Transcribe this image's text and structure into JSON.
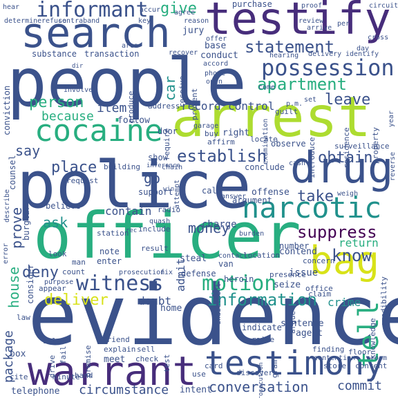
{
  "words": {
    "evidence": "evidence",
    "people": "people",
    "police": "police",
    "officer": "officer",
    "arrest": "arrest",
    "testify": "testify",
    "search": "search",
    "warrant": "warrant",
    "drug": "drug",
    "testimony": "testimony",
    "cocaine": "cocaine",
    "narcotic": "narcotic",
    "bag": "bag",
    "informant": "informant",
    "possession": "possession",
    "witness": "witness",
    "motion": "motion",
    "information": "information",
    "establish": "establish",
    "apartment": "apartment",
    "statement": "statement",
    "suppress": "suppress",
    "conversation": "conversation",
    "circumstance": "circumstance",
    "deliver": "deliver",
    "tell": "tell",
    "know": "know",
    "house": "house",
    "package": "package",
    "deny": "deny",
    "person": "person",
    "place": "place",
    "prove": "prove",
    "give": "give",
    "leave": "leave",
    "obtain": "obtain",
    "because": "because",
    "item": "item",
    "car": "car",
    "say": "say",
    "money": "money",
    "take": "take",
    "go": "go",
    "ask": "ask",
    "record": "record",
    "control": "control",
    "return": "return",
    "charge": "charge",
    "contain": "contain",
    "admit": "admit",
    "crime": "crime",
    "commit": "commit",
    "doubt": "doubt",
    "issue": "issue",
    "substance": "substance",
    "transaction": "transaction",
    "purchase": "purchase",
    "follow": "follow",
    "right": "right",
    "place_small": "offense",
    "argument": "argument",
    "home": "home",
    "steal": "steal",
    "defense": "defense",
    "heroin": "heroin",
    "telephone": "telephone",
    "intent": "intent",
    "conduct": "conduct",
    "base": "base",
    "jury": "jury",
    "meet": "meet",
    "note": "note",
    "enter": "enter",
    "sentence": "sentence",
    "agent": "agent",
    "seize": "seize",
    "contend": "contend",
    "surveillance": "surveillance",
    "establish_small": "observe",
    "box": "box",
    "indicate": "indicate",
    "number": "number",
    "call": "call",
    "support": "support",
    "conviction": "conviction",
    "burglary": "burglary",
    "believe": "believe",
    "consider": "consider",
    "counsel": "counsel",
    "door": "door",
    "show": "show",
    "conclude": "conclude",
    "request": "request",
    "building": "building",
    "radio": "radio",
    "van": "van",
    "result": "result",
    "include": "include",
    "station": "station",
    "presence": "presence",
    "location": "location",
    "concern": "concern",
    "office": "office",
    "claim": "claim",
    "finding": "finding",
    "floor": "floor",
    "store": "store",
    "content": "content",
    "card": "card",
    "sell": "sell",
    "explain": "explain",
    "friend": "friend",
    "check": "check",
    "raise": "raise",
    "discover": "discover",
    "fail": "fail",
    "look": "look",
    "man": "man",
    "count": "count",
    "appear": "appear",
    "purpose": "purpose",
    "law": "law",
    "sale": "sale",
    "minute": "minute",
    "cite": "cite",
    "hand": "hand",
    "drive": "drive",
    "use": "use",
    "premise": "premise",
    "test": "test",
    "gram": "gram",
    "argue": "argue",
    "knowledge": "knowledge",
    "credibility": "credibility",
    "residence": "residence",
    "property": "property",
    "examination": "examination",
    "introduce": "introduce",
    "guilt": "guilt",
    "locate": "locate",
    "affirm": "affirm",
    "buy": "buy",
    "hearing": "hearing",
    "delivery": "delivery",
    "identify": "identify",
    "receive": "receive",
    "present": "present",
    "require": "require",
    "address": "address",
    "produce": "produce",
    "involve": "involve",
    "area": "area",
    "contraband": "contraband",
    "determine": "determine",
    "refuse": "refuse",
    "key": "key",
    "agree": "agree",
    "reason": "reason",
    "hear": "hear",
    "accur": "accur",
    "proof": "proof",
    "circuit": "circuit",
    "review": "review",
    "arrive": "arrive",
    "per": "per",
    "cross": "cross",
    "day": "day",
    "come": "come",
    "open": "open",
    "phone": "phone",
    "accord": "accord",
    "offer": "offer",
    "recover": "recover",
    "set": "set",
    "pm": "p.m.",
    "garage": "garage",
    "chain": "chain",
    "cash": "cash",
    "weigh": "weigh",
    "reverse": "reverse",
    "year": "year",
    "describe": "describe",
    "quash": "quash",
    "attempt": "attempt",
    "answer": "answer",
    "inference": "inference",
    "error": "error",
    "burden": "burden",
    "indictment": "indictment",
    "prosecution": "prosecution",
    "contention": "contention",
    "room": "room",
    "fix": "fix",
    "contact": "contact",
    "rec": "rec",
    "win": "win",
    "dir": "dir"
  }
}
